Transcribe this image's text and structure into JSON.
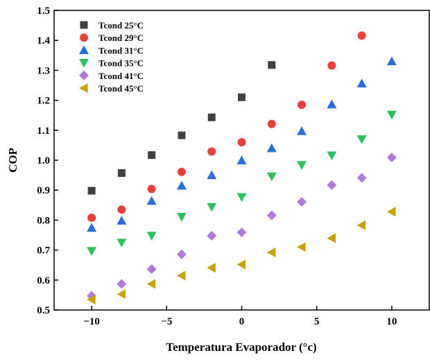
{
  "chart_data": {
    "type": "scatter",
    "title": "",
    "xlabel": "Temperatura Evaporador (°c)",
    "ylabel": "COP",
    "xlim": [
      -12.5,
      12.5
    ],
    "ylim": [
      0.5,
      1.5
    ],
    "x_ticks": [
      -10,
      -5,
      0,
      5,
      10
    ],
    "x_tick_labels": [
      "−10",
      "−5",
      "0",
      "5",
      "10"
    ],
    "y_ticks": [
      0.5,
      0.6,
      0.7,
      0.8,
      0.9,
      1.0,
      1.1,
      1.2,
      1.3,
      1.4,
      1.5
    ],
    "y_tick_labels": [
      "0.5",
      "0.6",
      "0.7",
      "0.8",
      "0.9",
      "1.0",
      "1.1",
      "1.2",
      "1.3",
      "1.4",
      "1.5"
    ],
    "grid": false,
    "legend_position": "top-left",
    "series": [
      {
        "name": "Tcond 25°C",
        "marker": "square",
        "color": "#404040",
        "x": [
          -10,
          -8,
          -6,
          -4,
          -2,
          0,
          2
        ],
        "y": [
          0.898,
          0.957,
          1.017,
          1.083,
          1.143,
          1.21,
          1.318
        ]
      },
      {
        "name": "Tcond 29°C",
        "marker": "circle",
        "color": "#e8413c",
        "x": [
          -10,
          -8,
          -6,
          -4,
          -2,
          0,
          2,
          4,
          6,
          8
        ],
        "y": [
          0.808,
          0.835,
          0.904,
          0.961,
          1.029,
          1.06,
          1.121,
          1.185,
          1.316,
          1.416
        ]
      },
      {
        "name": "Tcond 31°C",
        "marker": "triangle-up",
        "color": "#2a6fd9",
        "x": [
          -10,
          -8,
          -6,
          -4,
          -2,
          0,
          2,
          4,
          6,
          8,
          10
        ],
        "y": [
          0.774,
          0.798,
          0.864,
          0.915,
          0.95,
          0.999,
          1.04,
          1.097,
          1.186,
          1.256,
          1.33
        ]
      },
      {
        "name": "Tcond 35°C",
        "marker": "triangle-down",
        "color": "#2fbf5e",
        "x": [
          -10,
          -8,
          -6,
          -4,
          -2,
          0,
          2,
          4,
          6,
          8,
          10
        ],
        "y": [
          0.697,
          0.725,
          0.748,
          0.811,
          0.844,
          0.877,
          0.946,
          0.984,
          1.016,
          1.07,
          1.152
        ]
      },
      {
        "name": "Tcond 41°C",
        "marker": "diamond",
        "color": "#b07cdb",
        "x": [
          -10,
          -8,
          -6,
          -4,
          -2,
          0,
          2,
          4,
          6,
          8,
          10
        ],
        "y": [
          0.547,
          0.587,
          0.636,
          0.686,
          0.748,
          0.759,
          0.816,
          0.861,
          0.917,
          0.941,
          1.009
        ]
      },
      {
        "name": "Tcond 45°C",
        "marker": "triangle-left",
        "color": "#c9a100",
        "x": [
          -10,
          -8,
          -6,
          -4,
          -2,
          0,
          2,
          4,
          6,
          8,
          10
        ],
        "y": [
          0.535,
          0.553,
          0.587,
          0.615,
          0.641,
          0.652,
          0.692,
          0.71,
          0.74,
          0.783,
          0.828
        ]
      }
    ]
  }
}
